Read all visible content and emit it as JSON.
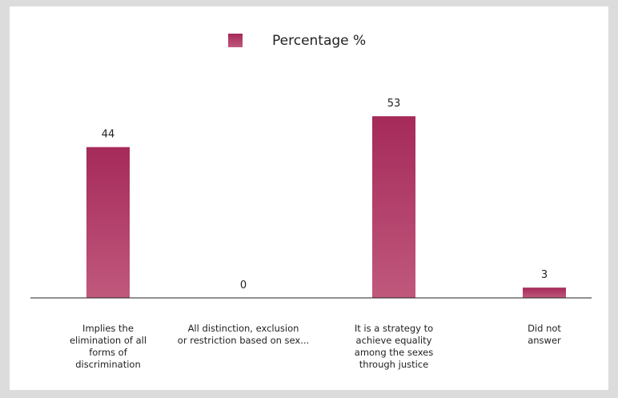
{
  "chart_data": {
    "type": "bar",
    "categories": [
      [
        "Implies the",
        "elimination of all",
        "forms of",
        "discrimination"
      ],
      [
        "All distinction, exclusion",
        "or restriction based on sex..."
      ],
      [
        "It is a strategy to",
        "achieve equality",
        "among the sexes",
        "through justice"
      ],
      [
        "Did not",
        "answer"
      ]
    ],
    "series": [
      {
        "name": "Percentage %",
        "values": [
          44,
          0,
          53,
          3
        ],
        "value_labels": [
          "44",
          "0",
          "53",
          "3"
        ]
      }
    ],
    "ylim": [
      0,
      60
    ],
    "legend_position": "top",
    "grid": false,
    "colors": {
      "bar_top": "#a52a5a",
      "bar_bottom": "#c0587c",
      "axis": "#222222"
    }
  }
}
